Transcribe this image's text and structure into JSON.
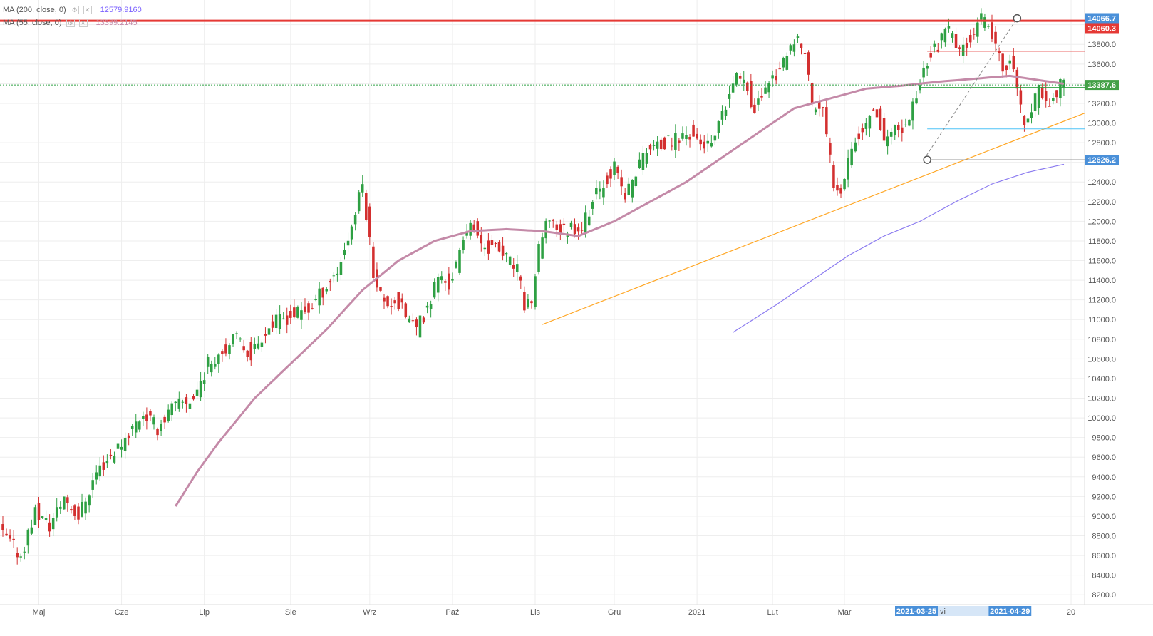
{
  "legend": {
    "ma200": {
      "label": "MA (200, close, 0)",
      "value": "12579.9160",
      "color": "#7b61ff"
    },
    "ma55": {
      "label": "MA (55, close, 0)",
      "value": "13399.2145",
      "color": "#c48aa8"
    }
  },
  "colors": {
    "up": "#2ea043",
    "down": "#d32f2f",
    "grid": "#eeeeee",
    "trend": "#ffa726",
    "resistance": "#e53935",
    "ma55": "#c48aa8",
    "ma200": "#8c7cf0",
    "support": "#4fc3f7",
    "badge_blue": "#4a90d9",
    "badge_red": "#e53935",
    "badge_green": "#43a047"
  },
  "chart_data": {
    "type": "candlestick",
    "title": "",
    "xlabel": "",
    "ylabel": "",
    "ylim": [
      8100,
      14150
    ],
    "y_ticks": [
      8200,
      8400,
      8600,
      8800,
      9000,
      9200,
      9400,
      9600,
      9800,
      10000,
      10200,
      10400,
      10600,
      10800,
      11000,
      11200,
      11400,
      11600,
      11800,
      12000,
      12200,
      12400,
      12600,
      12800,
      13000,
      13200,
      13400,
      13600,
      13800,
      14000
    ],
    "y_tick_labels": [
      "8200.0",
      "8400.0",
      "8600.0",
      "8800.0",
      "9000.0",
      "9200.0",
      "9400.0",
      "9600.0",
      "9800.0",
      "10000.0",
      "10200.0",
      "10400.0",
      "10600.0",
      "10800.0",
      "11000.0",
      "11200.0",
      "11400.0",
      "11600.0",
      "11800.0",
      "12000.0",
      "12200.0",
      "12400.0",
      "12600.0",
      "12800.0",
      "13000.0",
      "13200.0",
      "13400.0",
      "13600.0",
      "13800.0",
      "14000.0"
    ],
    "x_months": [
      {
        "label": "Maj",
        "day": 10
      },
      {
        "label": "Cze",
        "day": 33
      },
      {
        "label": "Lip",
        "day": 56
      },
      {
        "label": "Sie",
        "day": 80
      },
      {
        "label": "Wrz",
        "day": 102
      },
      {
        "label": "Paź",
        "day": 125
      },
      {
        "label": "Lis",
        "day": 148
      },
      {
        "label": "Gru",
        "day": 170
      },
      {
        "label": "2021",
        "day": 193
      },
      {
        "label": "Lut",
        "day": 214
      },
      {
        "label": "Mar",
        "day": 234
      },
      {
        "label": "20",
        "day": 297
      }
    ],
    "x_badges": [
      {
        "label": "2021-03-25",
        "day": 254
      },
      {
        "label": "2021-04-29",
        "day": 280
      }
    ],
    "x_badge_fragment": "vi",
    "price_badges": [
      {
        "label": "14066.7",
        "value": 14066.7,
        "style": "blue"
      },
      {
        "label": "14060.3",
        "value": 14060.3,
        "style": "red"
      },
      {
        "label": "13387.6",
        "value": 13387.6,
        "style": "green"
      },
      {
        "label": "12626.2",
        "value": 12626.2,
        "style": "blue"
      }
    ],
    "ohlc_anchors": [
      [
        0,
        8850
      ],
      [
        6,
        8600
      ],
      [
        10,
        9050
      ],
      [
        14,
        8900
      ],
      [
        18,
        9200
      ],
      [
        22,
        9000
      ],
      [
        27,
        9450
      ],
      [
        33,
        9700
      ],
      [
        37,
        9900
      ],
      [
        40,
        10050
      ],
      [
        44,
        9900
      ],
      [
        48,
        10100
      ],
      [
        54,
        10200
      ],
      [
        58,
        10550
      ],
      [
        62,
        10700
      ],
      [
        66,
        10800
      ],
      [
        70,
        10650
      ],
      [
        74,
        10900
      ],
      [
        78,
        11000
      ],
      [
        82,
        11050
      ],
      [
        86,
        11100
      ],
      [
        90,
        11300
      ],
      [
        94,
        11500
      ],
      [
        98,
        11950
      ],
      [
        101,
        12380
      ],
      [
        104,
        11500
      ],
      [
        107,
        11150
      ],
      [
        110,
        11200
      ],
      [
        113,
        11050
      ],
      [
        116,
        10900
      ],
      [
        119,
        11100
      ],
      [
        122,
        11450
      ],
      [
        125,
        11350
      ],
      [
        128,
        11650
      ],
      [
        131,
        12050
      ],
      [
        133,
        11800
      ],
      [
        136,
        11750
      ],
      [
        139,
        11700
      ],
      [
        141,
        11620
      ],
      [
        144,
        11500
      ],
      [
        146,
        11150
      ],
      [
        148,
        11200
      ],
      [
        150,
        11700
      ],
      [
        153,
        12050
      ],
      [
        156,
        11900
      ],
      [
        159,
        11950
      ],
      [
        162,
        11950
      ],
      [
        165,
        12200
      ],
      [
        168,
        12400
      ],
      [
        171,
        12550
      ],
      [
        174,
        12250
      ],
      [
        177,
        12500
      ],
      [
        180,
        12750
      ],
      [
        183,
        12750
      ],
      [
        186,
        12800
      ],
      [
        189,
        12850
      ],
      [
        192,
        12900
      ],
      [
        195,
        12800
      ],
      [
        198,
        12750
      ],
      [
        201,
        13050
      ],
      [
        204,
        13400
      ],
      [
        207,
        13500
      ],
      [
        210,
        13100
      ],
      [
        213,
        13400
      ],
      [
        216,
        13500
      ],
      [
        219,
        13650
      ],
      [
        222,
        13850
      ],
      [
        224,
        13700
      ],
      [
        226,
        13200
      ],
      [
        229,
        13100
      ],
      [
        232,
        12400
      ],
      [
        234,
        12350
      ],
      [
        237,
        12800
      ],
      [
        240,
        12900
      ],
      [
        243,
        13200
      ],
      [
        246,
        12850
      ],
      [
        249,
        12900
      ],
      [
        252,
        12950
      ],
      [
        255,
        13300
      ],
      [
        258,
        13650
      ],
      [
        261,
        13800
      ],
      [
        264,
        13950
      ],
      [
        267,
        13700
      ],
      [
        270,
        13900
      ],
      [
        273,
        14050
      ],
      [
        276,
        13900
      ],
      [
        279,
        13500
      ],
      [
        281,
        13700
      ],
      [
        283,
        13300
      ],
      [
        285,
        13000
      ],
      [
        287,
        13100
      ],
      [
        289,
        13350
      ],
      [
        292,
        13200
      ],
      [
        295,
        13390
      ]
    ],
    "num_days": 296,
    "ma55": {
      "start_day": 48,
      "anchors": [
        [
          48,
          9100
        ],
        [
          54,
          9450
        ],
        [
          60,
          9750
        ],
        [
          70,
          10200
        ],
        [
          80,
          10550
        ],
        [
          90,
          10900
        ],
        [
          100,
          11300
        ],
        [
          110,
          11600
        ],
        [
          120,
          11800
        ],
        [
          130,
          11900
        ],
        [
          140,
          11920
        ],
        [
          150,
          11900
        ],
        [
          160,
          11850
        ],
        [
          170,
          12000
        ],
        [
          180,
          12200
        ],
        [
          190,
          12400
        ],
        [
          200,
          12650
        ],
        [
          210,
          12900
        ],
        [
          220,
          13150
        ],
        [
          230,
          13250
        ],
        [
          240,
          13350
        ],
        [
          250,
          13380
        ],
        [
          260,
          13420
        ],
        [
          270,
          13450
        ],
        [
          280,
          13480
        ],
        [
          295,
          13399
        ]
      ]
    },
    "ma200": {
      "anchors": [
        [
          203,
          10870
        ],
        [
          215,
          11150
        ],
        [
          225,
          11400
        ],
        [
          235,
          11650
        ],
        [
          245,
          11850
        ],
        [
          255,
          12000
        ],
        [
          265,
          12200
        ],
        [
          275,
          12380
        ],
        [
          285,
          12500
        ],
        [
          295,
          12580
        ]
      ]
    },
    "lines": [
      {
        "name": "",
        "type": "trend",
        "from": [
          150,
          10950
        ],
        "to": [
          296,
          13100
        ]
      },
      {
        "name": "",
        "type": "resistance",
        "from": [
          0,
          14040
        ],
        "to": [
          296,
          14040
        ]
      },
      {
        "name": "",
        "type": "level-red",
        "from": [
          257,
          13730
        ],
        "to": [
          296,
          13730
        ]
      },
      {
        "name": "",
        "type": "level-green",
        "from": [
          255,
          13360
        ],
        "to": [
          296,
          13360
        ]
      },
      {
        "name": "",
        "type": "level-blue",
        "from": [
          257,
          12940
        ],
        "to": [
          296,
          12940
        ]
      },
      {
        "name": "",
        "type": "level-gray",
        "from": [
          256,
          12626
        ],
        "to": [
          296,
          12626
        ]
      },
      {
        "name": "",
        "type": "dotted-green",
        "from": [
          0,
          13387
        ],
        "to": [
          296,
          13387
        ]
      },
      {
        "name": "",
        "type": "dashed-gray",
        "from": [
          256,
          12626
        ],
        "to": [
          282,
          14066
        ]
      }
    ],
    "markers": [
      {
        "day": 257,
        "value": 12626
      },
      {
        "day": 282,
        "value": 14066
      }
    ]
  }
}
